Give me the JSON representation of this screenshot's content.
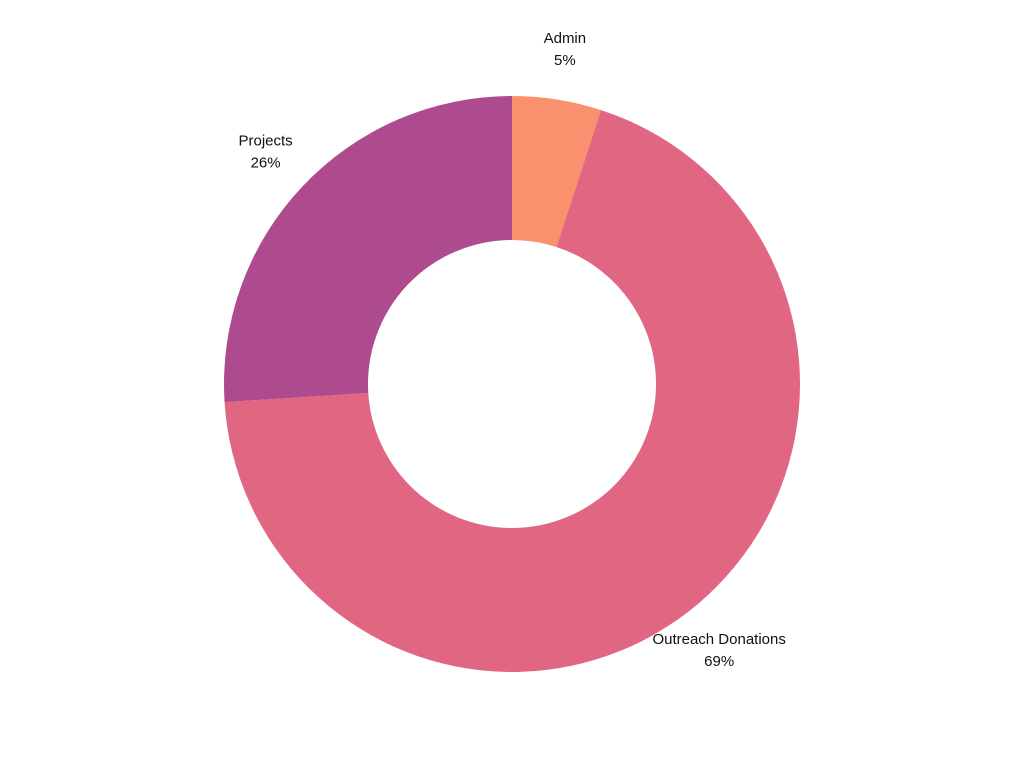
{
  "chart_data": {
    "type": "donut",
    "categories": [
      "Admin",
      "Outreach Donations",
      "Projects"
    ],
    "values": [
      5,
      69,
      26
    ],
    "value_labels": [
      "5%",
      "69%",
      "26%"
    ],
    "colors": [
      "#f9916f",
      "#e16682",
      "#ad4b8e"
    ]
  }
}
